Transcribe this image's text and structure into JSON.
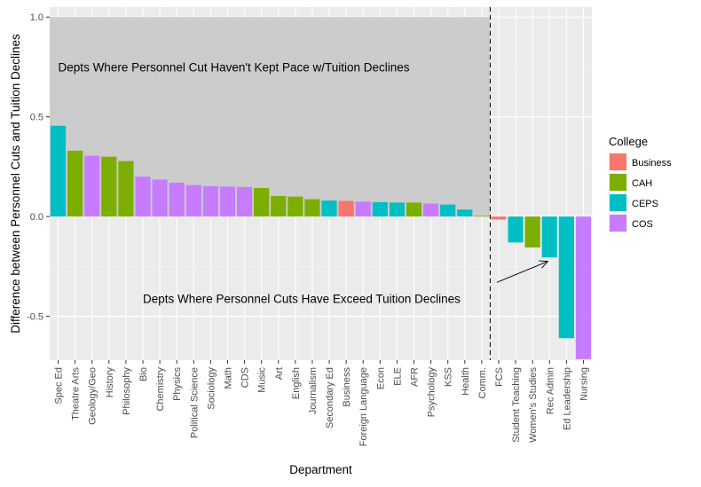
{
  "chart_data": {
    "type": "bar",
    "xlabel": "Department",
    "ylabel": "Difference between Personnel Cuts and Tuition Declines",
    "ylim": [
      -0.72,
      1.05
    ],
    "yticks": [
      -0.5,
      0.0,
      0.5,
      1.0
    ],
    "ytick_labels": [
      "-0.5",
      "0.0",
      "0.5",
      "1.0"
    ],
    "grid": true,
    "legend": {
      "title": "College",
      "placement": "right",
      "entries": [
        {
          "name": "Business",
          "color": "#F8766D"
        },
        {
          "name": "CAH",
          "color": "#7CAE00"
        },
        {
          "name": "CEPS",
          "color": "#00BFC4"
        },
        {
          "name": "COS",
          "color": "#C77CFF"
        }
      ]
    },
    "categories": [
      "Spec Ed",
      "Theatre Arts",
      "Geology/Geo",
      "History",
      "Philosophy",
      "Bio",
      "Chemistry",
      "Physics",
      "Political Science",
      "Sociology",
      "Math",
      "CDS",
      "Music",
      "Art",
      "English",
      "Journalism",
      "Secondary Ed",
      "Business",
      "Foreign Language",
      "Econ",
      "ELE",
      "AFR",
      "Psychology",
      "KSS",
      "Health",
      "Comm.",
      "FCS",
      "Student Teaching",
      "Women's Studies",
      "Rec Admin",
      "Ed Leadership",
      "Nursing"
    ],
    "values": [
      0.455,
      0.33,
      0.305,
      0.3,
      0.278,
      0.2,
      0.185,
      0.17,
      0.158,
      0.152,
      0.15,
      0.148,
      0.143,
      0.103,
      0.1,
      0.087,
      0.08,
      0.078,
      0.075,
      0.072,
      0.07,
      0.07,
      0.065,
      0.06,
      0.035,
      0.003,
      -0.015,
      -0.13,
      -0.155,
      -0.205,
      -0.61,
      -0.715
    ],
    "colleges": [
      "CEPS",
      "CAH",
      "COS",
      "CAH",
      "CAH",
      "COS",
      "COS",
      "COS",
      "COS",
      "COS",
      "COS",
      "COS",
      "CAH",
      "CAH",
      "CAH",
      "CAH",
      "CEPS",
      "Business",
      "COS",
      "CEPS",
      "CEPS",
      "CAH",
      "COS",
      "CEPS",
      "CEPS",
      "CAH",
      "Business",
      "CEPS",
      "CAH",
      "CEPS",
      "CEPS",
      "COS"
    ],
    "shaded_region": {
      "x_from_category": "Spec Ed",
      "x_to_category": "Comm.",
      "y_from": 0.0,
      "y_to": 1.0,
      "color": "#cccccc"
    },
    "vline": {
      "between_categories": [
        "Comm.",
        "FCS"
      ],
      "style": "dashed"
    },
    "annotations": [
      {
        "text": "Depts Where Personnel Cut Haven't Kept Pace w/Tuition Declines",
        "x_category": "Spec Ed",
        "y": 0.75
      },
      {
        "text": "Depts Where Personnel Cuts Have Exceed Tuition Declines",
        "x_category": "Bio",
        "y": -0.41
      },
      {
        "type": "arrow",
        "from_category": "FCS",
        "from_y": -0.33,
        "to_category": "Rec Admin",
        "to_y": -0.225
      }
    ]
  }
}
